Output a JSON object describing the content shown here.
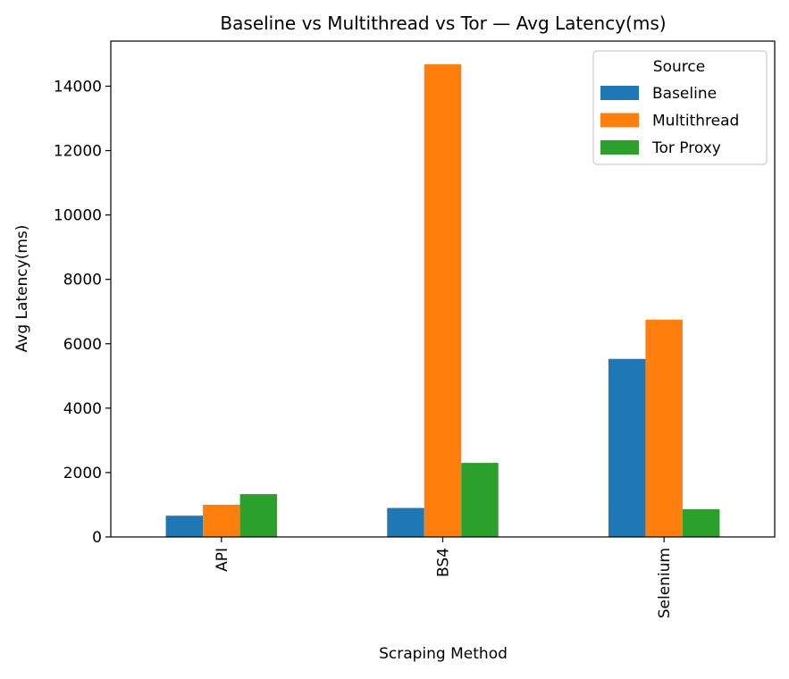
{
  "chart_data": {
    "type": "bar",
    "title": "Baseline vs Multithread vs Tor — Avg Latency(ms)",
    "xlabel": "Scraping Method",
    "ylabel": "Avg Latency(ms)",
    "categories": [
      "API",
      "BS4",
      "Selenium"
    ],
    "series": [
      {
        "name": "Baseline",
        "color": "#1f77b4",
        "values": [
          660,
          900,
          5530
        ]
      },
      {
        "name": "Multithread",
        "color": "#ff7f0e",
        "values": [
          1000,
          14680,
          6750
        ]
      },
      {
        "name": "Tor Proxy",
        "color": "#2ca02c",
        "values": [
          1330,
          2300,
          860
        ]
      }
    ],
    "ylim": [
      0,
      15400
    ],
    "yticks": [
      0,
      2000,
      4000,
      6000,
      8000,
      10000,
      12000,
      14000
    ],
    "ytick_labels": [
      "0",
      "2000",
      "4000",
      "6000",
      "8000",
      "10000",
      "12000",
      "14000"
    ],
    "grid": false,
    "legend": {
      "title": "Source",
      "position": "top-right"
    },
    "xtick_rotation": "vertical"
  }
}
